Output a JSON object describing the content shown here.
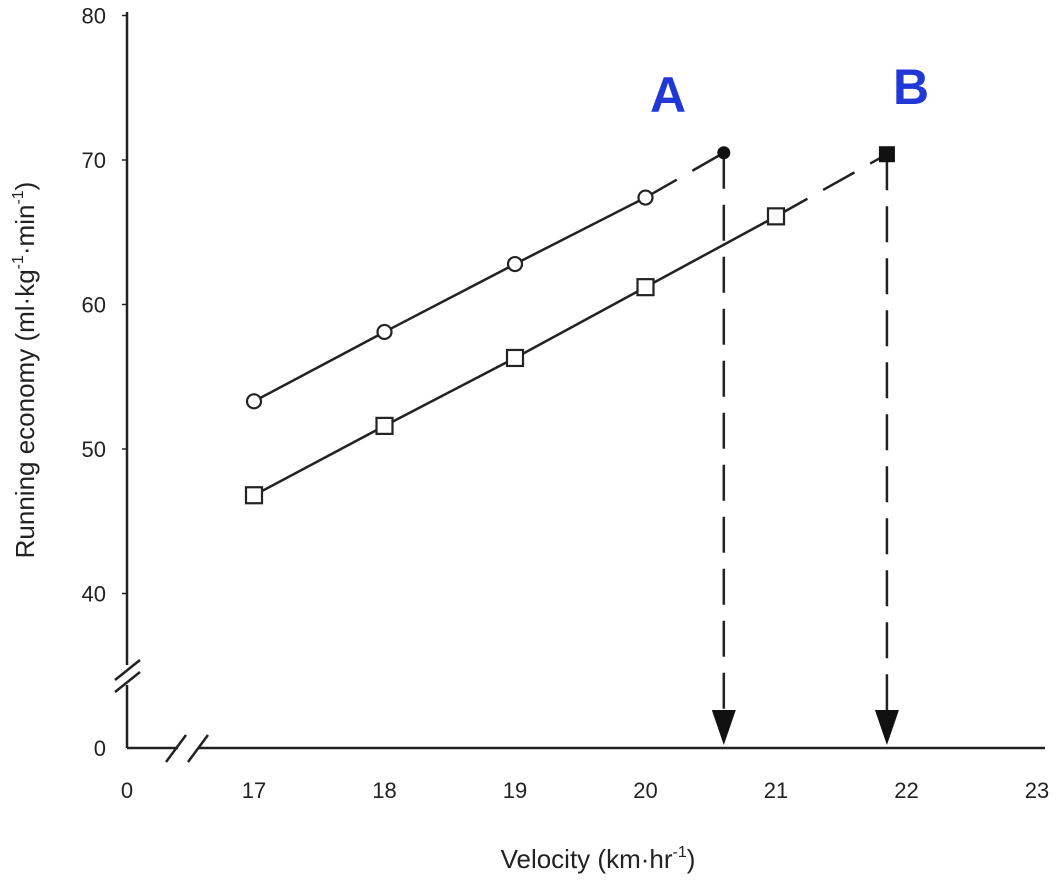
{
  "chart_data": {
    "type": "line",
    "title": "",
    "xlabel": "Velocity (km·hr",
    "xlabel_sup": "-1",
    "xlabel_end": ")",
    "ylabel": "Running economy (ml·kg",
    "ylabel_sup1": "-1",
    "ylabel_mid": "·min",
    "ylabel_sup2": "-1",
    "ylabel_end": ")",
    "x_ticks": [
      "0",
      "17",
      "18",
      "19",
      "20",
      "21",
      "22",
      "23"
    ],
    "y_ticks": [
      "0",
      "40",
      "50",
      "60",
      "70",
      "80"
    ],
    "xlim": [
      17,
      23
    ],
    "ylim": [
      30,
      80
    ],
    "axis_breaks": [
      "x",
      "y"
    ],
    "series": [
      {
        "name": "A",
        "marker": "circle",
        "x": [
          17,
          18,
          19,
          20
        ],
        "y": [
          53.3,
          58.1,
          62.8,
          67.4
        ],
        "extrapolated_end": {
          "x": 20.6,
          "y": 70.5
        },
        "drop_to_x": 20.6
      },
      {
        "name": "B",
        "marker": "square",
        "x": [
          17,
          18,
          19,
          20,
          21
        ],
        "y": [
          46.8,
          51.6,
          56.3,
          61.2,
          66.1
        ],
        "extrapolated_end": {
          "x": 21.85,
          "y": 70.4
        },
        "drop_to_x": 21.85
      }
    ],
    "annotations": [
      {
        "text": "A",
        "color": "#2238d6"
      },
      {
        "text": "B",
        "color": "#2238d6"
      }
    ]
  }
}
